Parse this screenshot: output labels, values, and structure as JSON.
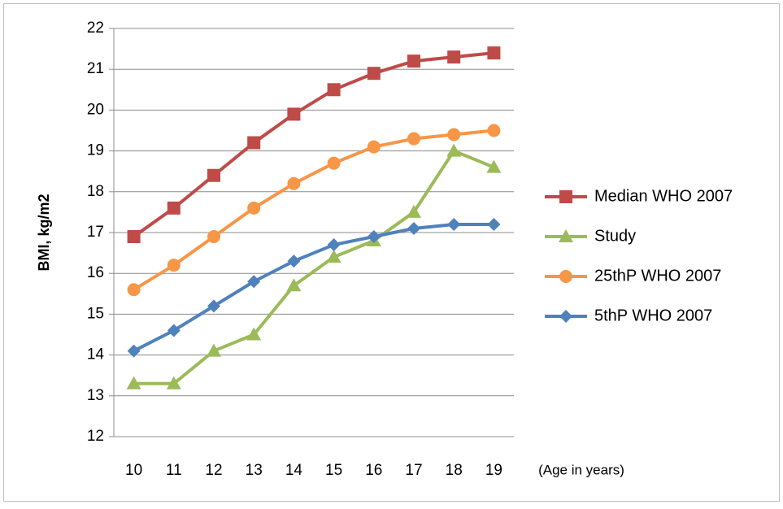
{
  "chart_data": {
    "type": "line",
    "y_label": "BMI, kg/m2",
    "x_label": "(Age in years)",
    "categories": [
      "10",
      "11",
      "12",
      "13",
      "14",
      "15",
      "16",
      "17",
      "18",
      "19"
    ],
    "series": [
      {
        "name": "Median WHO 2007",
        "color": "#be4b48",
        "marker": "square",
        "values": [
          16.9,
          17.6,
          18.4,
          19.2,
          19.9,
          20.5,
          20.9,
          21.2,
          21.3,
          21.4
        ]
      },
      {
        "name": "Study",
        "color": "#9bbb59",
        "marker": "triangle",
        "values": [
          13.3,
          13.3,
          14.1,
          14.5,
          15.7,
          16.4,
          16.8,
          17.5,
          19.0,
          18.6
        ]
      },
      {
        "name": "25thP WHO 2007",
        "color": "#f79646",
        "marker": "circle",
        "values": [
          15.6,
          16.2,
          16.9,
          17.6,
          18.2,
          18.7,
          19.1,
          19.3,
          19.4,
          19.5
        ]
      },
      {
        "name": "5thP WHO 2007",
        "color": "#4f81bd",
        "marker": "diamond",
        "values": [
          14.1,
          14.6,
          15.2,
          15.8,
          16.3,
          16.7,
          16.9,
          17.1,
          17.2,
          17.2
        ]
      }
    ],
    "ylim": [
      12,
      22
    ],
    "yticks": [
      12,
      13,
      14,
      15,
      16,
      17,
      18,
      19,
      20,
      21,
      22
    ],
    "grid": true,
    "legend": "right"
  }
}
